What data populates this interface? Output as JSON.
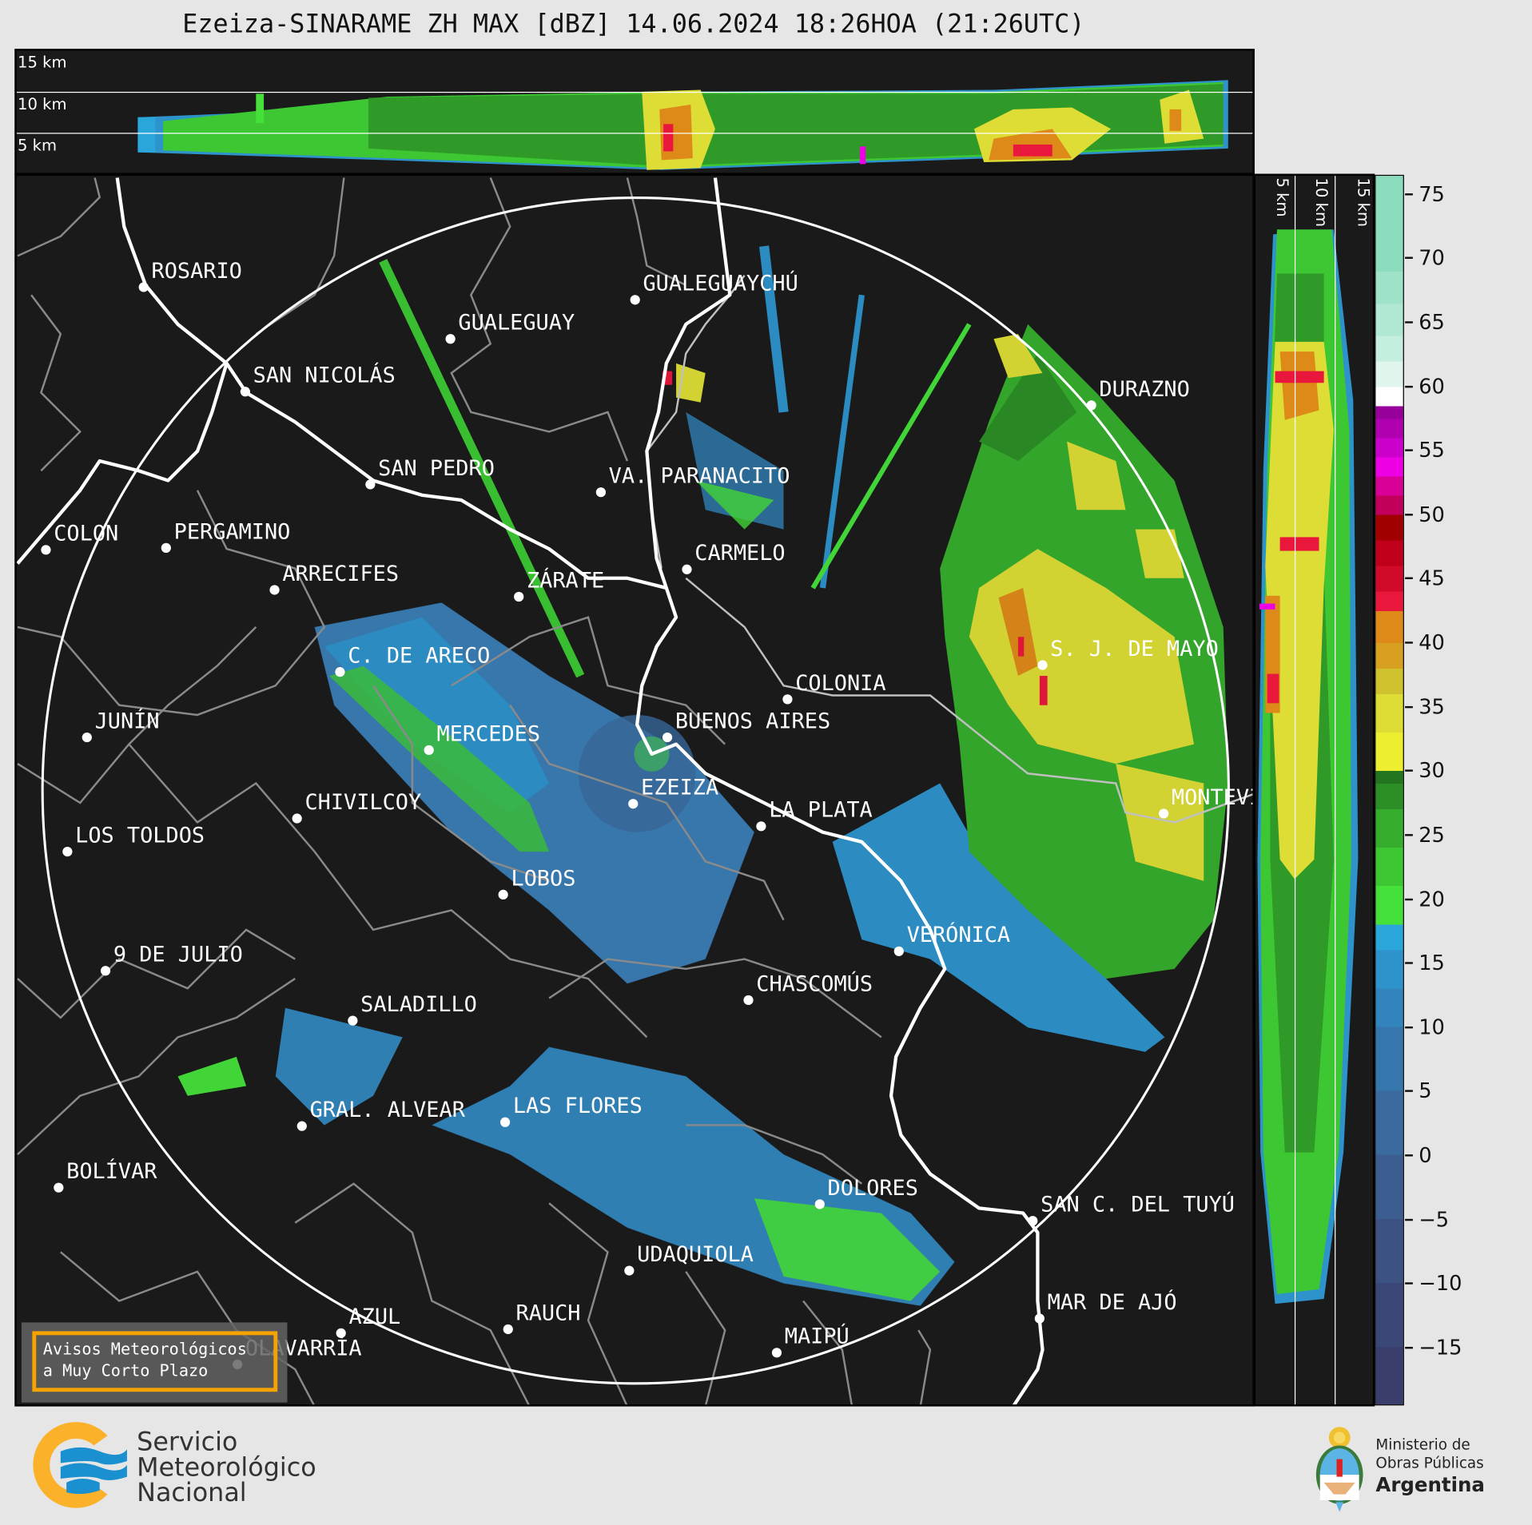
{
  "title": "Ezeiza-SINARAME ZH MAX [dBZ] 14.06.2024 18:26HOA (21:26UTC)",
  "cross_section_top": {
    "labels": [
      "15 km",
      "10 km",
      "5 km"
    ]
  },
  "cross_section_right": {
    "labels": [
      "5 km",
      "10 km",
      "15 km"
    ]
  },
  "colorbar": {
    "unit": "dBZ",
    "ticks": [
      "75",
      "70",
      "65",
      "60",
      "55",
      "50",
      "45",
      "40",
      "35",
      "30",
      "25",
      "20",
      "15",
      "10",
      "5",
      "0",
      "−5",
      "−10",
      "−15"
    ],
    "range": [
      -19.5,
      76.5
    ],
    "colormap": [
      {
        "from": -19.5,
        "color": "#3a3e6c"
      },
      {
        "from": -15,
        "color": "#3b4777"
      },
      {
        "from": -10,
        "color": "#3c5283"
      },
      {
        "from": -5,
        "color": "#3b5d90"
      },
      {
        "from": 0,
        "color": "#3a6a9e"
      },
      {
        "from": 5,
        "color": "#3577ad"
      },
      {
        "from": 10,
        "color": "#3285bc"
      },
      {
        "from": 13,
        "color": "#2e93cb"
      },
      {
        "from": 16,
        "color": "#2aa6da"
      },
      {
        "from": 18,
        "color": "#45e03a"
      },
      {
        "from": 21,
        "color": "#3dc833"
      },
      {
        "from": 24,
        "color": "#36ad2d"
      },
      {
        "from": 27,
        "color": "#2c8f25"
      },
      {
        "from": 29,
        "color": "#237520"
      },
      {
        "from": 30,
        "color": "#eeee30"
      },
      {
        "from": 33,
        "color": "#dddd35"
      },
      {
        "from": 36,
        "color": "#cfc22e"
      },
      {
        "from": 38,
        "color": "#d8a020"
      },
      {
        "from": 40,
        "color": "#de8a18"
      },
      {
        "from": 42.5,
        "color": "#ea173c"
      },
      {
        "from": 44,
        "color": "#d00a28"
      },
      {
        "from": 46,
        "color": "#c0001a"
      },
      {
        "from": 48,
        "color": "#a00000"
      },
      {
        "from": 50,
        "color": "#c2005c"
      },
      {
        "from": 51.5,
        "color": "#d80096"
      },
      {
        "from": 53,
        "color": "#ee00e4"
      },
      {
        "from": 54.5,
        "color": "#cc00cc"
      },
      {
        "from": 56,
        "color": "#b000b0"
      },
      {
        "from": 57.5,
        "color": "#98009c"
      },
      {
        "from": 58.5,
        "color": "#ffffff"
      },
      {
        "from": 60,
        "color": "#e0f5ec"
      },
      {
        "from": 62,
        "color": "#c4eede"
      },
      {
        "from": 64,
        "color": "#b0e8d4"
      },
      {
        "from": 66.5,
        "color": "#9ee2c8"
      },
      {
        "from": 69,
        "color": "#8cdcbe"
      }
    ]
  },
  "cities": [
    "ROSARIO",
    "GUALEGUAYCHÚ",
    "GUALEGUAY",
    "SAN NICOLÁS",
    "DURAZNO",
    "SAN PEDRO",
    "VA. PARANACITO",
    "COLON",
    "PERGAMINO",
    "CARMELO",
    "ARRECIFES",
    "ZÁRATE",
    "S. J. DE MAYO",
    "C. DE ARECO",
    "COLONIA",
    "JUNÍN",
    "BUENOS AIRES",
    "MERCEDES",
    "EZEIZA",
    "MONTEVIDEO",
    "CHIVILCOY",
    "LA PLATA",
    "LOS TOLDOS",
    "LOBOS",
    "VERÓNICA",
    "9 DE JULIO",
    "CHASCOMÚS",
    "SALADILLO",
    "GRAL. ALVEAR",
    "LAS FLORES",
    "BOLÍVAR",
    "DOLORES",
    "SAN C. DEL TUYÚ",
    "UDAQUIOLA",
    "MAR DE AJÓ",
    "AZUL",
    "RAUCH",
    "OLAVARRÍA",
    "MAIPÚ"
  ],
  "avisos": {
    "line1": "Avisos Meteorológicos",
    "line2": "a Muy Corto Plazo"
  },
  "smn_logo": {
    "line1": "Servicio",
    "line2": "Meteorológico",
    "line3": "Nacional",
    "colors": {
      "ring": "#fbb22a",
      "waves": "#1a90d0"
    }
  },
  "ministry_logo": {
    "line1": "Ministerio de",
    "line2": "Obras Públicas",
    "line3": "Argentina"
  }
}
